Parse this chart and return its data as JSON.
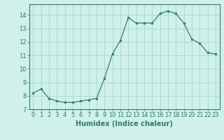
{
  "x": [
    0,
    1,
    2,
    3,
    4,
    5,
    6,
    7,
    8,
    9,
    10,
    11,
    12,
    13,
    14,
    15,
    16,
    17,
    18,
    19,
    20,
    21,
    22,
    23
  ],
  "y": [
    8.2,
    8.5,
    7.8,
    7.6,
    7.5,
    7.5,
    7.6,
    7.7,
    7.8,
    9.3,
    11.1,
    12.1,
    13.8,
    13.4,
    13.4,
    13.4,
    14.1,
    14.3,
    14.1,
    13.4,
    12.2,
    11.9,
    11.2,
    11.1
  ],
  "line_color": "#2e7d6e",
  "marker": "o",
  "marker_size": 2.0,
  "bg_color": "#cff0eb",
  "grid_color": "#aaddcc",
  "xlabel": "Humidex (Indice chaleur)",
  "xlim": [
    -0.5,
    23.5
  ],
  "ylim": [
    7,
    14.8
  ],
  "yticks": [
    7,
    8,
    9,
    10,
    11,
    12,
    13,
    14
  ],
  "xticks": [
    0,
    1,
    2,
    3,
    4,
    5,
    6,
    7,
    8,
    9,
    10,
    11,
    12,
    13,
    14,
    15,
    16,
    17,
    18,
    19,
    20,
    21,
    22,
    23
  ],
  "tick_color": "#2e7d6e",
  "label_color": "#2e7d6e",
  "tick_fontsize": 6.0,
  "xlabel_fontsize": 7.0
}
